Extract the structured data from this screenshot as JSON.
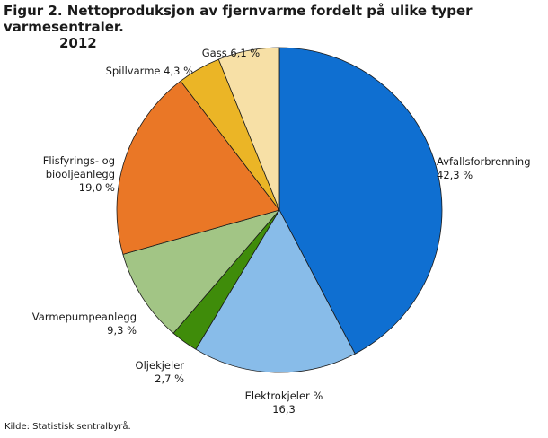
{
  "figure": {
    "title_line1": "Figur 2. Nettoproduksjon av fjernvarme fordelt på ulike typer varmesentraler.",
    "title_line2": "2012",
    "source": "Kilde: Statistisk sentralbyrå."
  },
  "chart_data": {
    "type": "pie",
    "title": "Figur 2. Nettoproduksjon av fjernvarme fordelt på ulike typer varmesentraler. 2012",
    "slices": [
      {
        "name": "Avfallsforbrenning",
        "value": 42.3,
        "color": "#0f6fd1",
        "label_lines": [
          "Avfallsforbrenning",
          "42,3 %"
        ]
      },
      {
        "name": "Elektrokjeler",
        "value": 16.3,
        "color": "#88bce9",
        "label_lines": [
          "Elektrokjeler %",
          "16,3"
        ]
      },
      {
        "name": "Oljekjeler",
        "value": 2.7,
        "color": "#3f8c0a",
        "label_lines": [
          "Oljekjeler",
          "2,7 %"
        ]
      },
      {
        "name": "Varmepumpeanlegg",
        "value": 9.3,
        "color": "#a2c585",
        "label_lines": [
          "Varmepumpeanlegg",
          "9,3 %"
        ]
      },
      {
        "name": "Flisfyrings- og biooljeanlegg",
        "value": 19.0,
        "color": "#ea7726",
        "label_lines": [
          "Flisfyrings- og",
          "biooljeanlegg",
          "19,0 %"
        ]
      },
      {
        "name": "Spillvarme",
        "value": 4.3,
        "color": "#ebb526",
        "label_lines": [
          "Spillvarme 4,3 %"
        ]
      },
      {
        "name": "Gass",
        "value": 6.1,
        "color": "#f7e0a6",
        "label_lines": [
          "Gass 6,1 %"
        ]
      }
    ],
    "start_angle": "12 o'clock",
    "direction": "clockwise",
    "legend": "none"
  }
}
